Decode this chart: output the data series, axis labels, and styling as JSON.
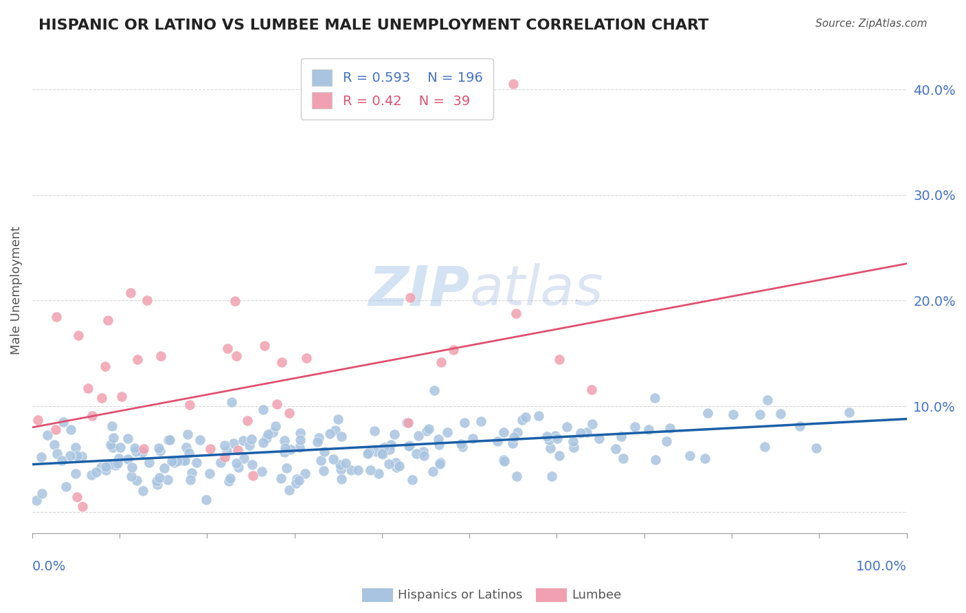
{
  "title": "HISPANIC OR LATINO VS LUMBEE MALE UNEMPLOYMENT CORRELATION CHART",
  "source_text": "Source: ZipAtlas.com",
  "ylabel": "Male Unemployment",
  "yticks": [
    0.0,
    0.1,
    0.2,
    0.3,
    0.4
  ],
  "ytick_labels": [
    "",
    "10.0%",
    "20.0%",
    "30.0%",
    "40.0%"
  ],
  "xlim": [
    0.0,
    1.0
  ],
  "ylim": [
    -0.02,
    0.44
  ],
  "blue_R": 0.593,
  "blue_N": 196,
  "pink_R": 0.42,
  "pink_N": 39,
  "blue_color": "#a8c4e0",
  "pink_color": "#f0a0b0",
  "blue_line_color": "#1a5fa8",
  "pink_line_color": "#e05070",
  "legend_label_blue": "Hispanics or Latinos",
  "legend_label_pink": "Lumbee",
  "blue_trend_x": [
    0.0,
    1.0
  ],
  "blue_trend_y": [
    0.045,
    0.088
  ],
  "pink_trend_x": [
    0.0,
    1.0
  ],
  "pink_trend_y": [
    0.08,
    0.235
  ]
}
